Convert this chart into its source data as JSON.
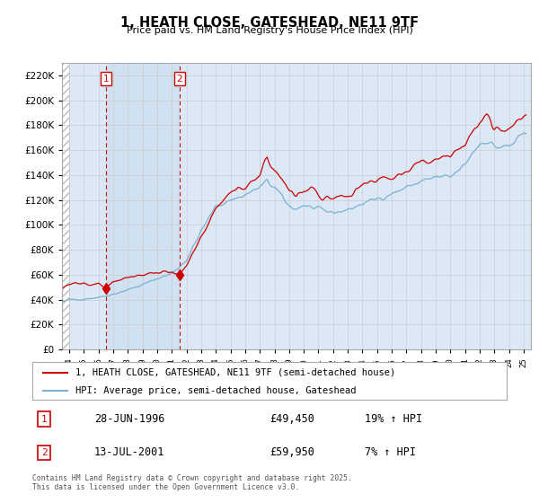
{
  "title": "1, HEATH CLOSE, GATESHEAD, NE11 9TF",
  "subtitle": "Price paid vs. HM Land Registry's House Price Index (HPI)",
  "legend_line1": "1, HEATH CLOSE, GATESHEAD, NE11 9TF (semi-detached house)",
  "legend_line2": "HPI: Average price, semi-detached house, Gateshead",
  "footnote": "Contains HM Land Registry data © Crown copyright and database right 2025.\nThis data is licensed under the Open Government Licence v3.0.",
  "sale1_date": "28-JUN-1996",
  "sale1_price": "£49,450",
  "sale1_hpi": "19% ↑ HPI",
  "sale2_date": "13-JUL-2001",
  "sale2_price": "£59,950",
  "sale2_hpi": "7% ↑ HPI",
  "sale1_year": 1996.49,
  "sale2_year": 2001.53,
  "sale1_price_val": 49450,
  "sale2_price_val": 59950,
  "price_color": "#cc0000",
  "hpi_color": "#7ab0d4",
  "vline_color": "#cc0000",
  "grid_color": "#cccccc",
  "background_color": "#ffffff",
  "plot_bg_color": "#dce8f5",
  "shade_color": "#dce8f5",
  "hatch_color": "#cccccc",
  "ylim": [
    0,
    230000
  ],
  "yticks": [
    0,
    20000,
    40000,
    60000,
    80000,
    100000,
    120000,
    140000,
    160000,
    180000,
    200000,
    220000
  ],
  "xmin": 1993.5,
  "xmax": 2025.5
}
